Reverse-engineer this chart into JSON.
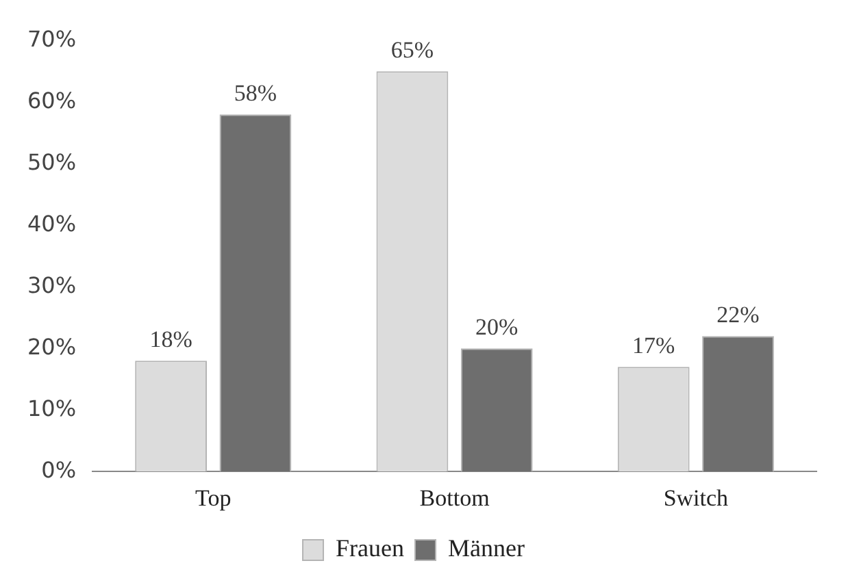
{
  "chart_data": {
    "type": "bar",
    "categories": [
      "Top",
      "Bottom",
      "Switch"
    ],
    "series": [
      {
        "name": "Frauen",
        "color": "#dcdcdc",
        "values": [
          18,
          65,
          17
        ],
        "value_labels": [
          "18%",
          "65%",
          "17%"
        ]
      },
      {
        "name": "Männer",
        "color": "#6e6e6e",
        "values": [
          58,
          20,
          22
        ],
        "value_labels": [
          "58%",
          "20%",
          "22%"
        ]
      }
    ],
    "ylim": [
      0,
      70
    ],
    "yticks": [
      {
        "value": 0,
        "label": "0%"
      },
      {
        "value": 10,
        "label": "10%"
      },
      {
        "value": 20,
        "label": "20%"
      },
      {
        "value": 30,
        "label": "30%"
      },
      {
        "value": 40,
        "label": "40%"
      },
      {
        "value": 50,
        "label": "50%"
      },
      {
        "value": 60,
        "label": "60%"
      },
      {
        "value": 70,
        "label": "70%"
      }
    ],
    "grid": false,
    "legend": "bottom"
  }
}
